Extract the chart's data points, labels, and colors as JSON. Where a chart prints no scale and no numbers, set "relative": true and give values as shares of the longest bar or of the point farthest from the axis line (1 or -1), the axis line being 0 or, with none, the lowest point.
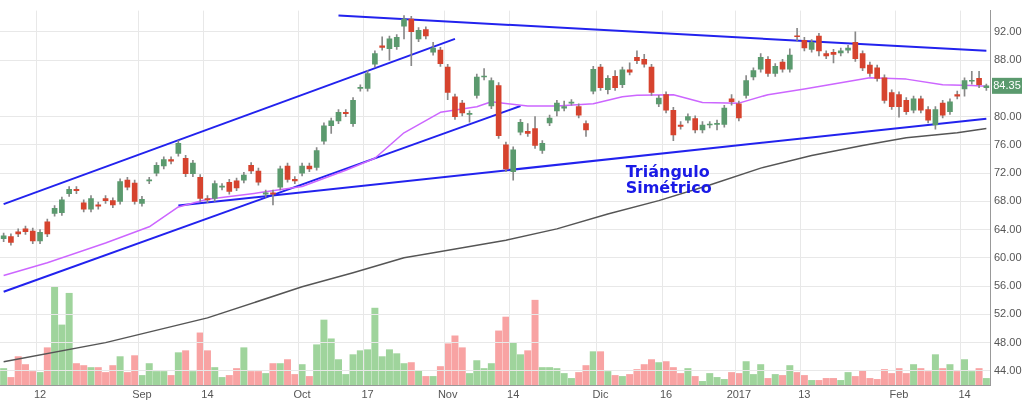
{
  "chart_data": [
    {
      "type": "candlestick",
      "categories": [
        null,
        null,
        null,
        null,
        null,
        "12",
        null,
        null,
        null,
        null,
        null,
        null,
        null,
        null,
        null,
        null,
        null,
        null,
        null,
        "Sep",
        null,
        null,
        null,
        null,
        null,
        null,
        null,
        null,
        "14",
        null,
        null,
        null,
        null,
        null,
        null,
        null,
        null,
        null,
        null,
        null,
        null,
        "Oct",
        null,
        null,
        null,
        null,
        null,
        null,
        null,
        null,
        "17",
        null,
        null,
        null,
        null,
        null,
        null,
        null,
        null,
        null,
        null,
        "Nov",
        null,
        null,
        null,
        null,
        null,
        null,
        null,
        null,
        "14",
        null,
        null,
        null,
        null,
        null,
        null,
        null,
        null,
        null,
        null,
        null,
        "Dic",
        null,
        null,
        null,
        null,
        null,
        null,
        null,
        null,
        "16",
        null,
        null,
        null,
        null,
        null,
        null,
        null,
        null,
        null,
        "2017",
        null,
        null,
        null,
        null,
        null,
        null,
        null,
        null,
        "13",
        null,
        null,
        null,
        null,
        null,
        null,
        null,
        null,
        null,
        null,
        null,
        null,
        "Feb",
        null,
        null,
        null,
        null,
        null,
        null,
        null,
        null,
        "14",
        null,
        null,
        null
      ],
      "ohlc": [
        [
          62.7,
          63.5,
          62.3,
          63.1
        ],
        [
          63.0,
          63.4,
          61.8,
          62.2
        ],
        [
          63.7,
          64.1,
          63.0,
          63.4
        ],
        [
          64.1,
          64.5,
          63.3,
          63.7
        ],
        [
          63.8,
          64.2,
          62.0,
          62.4
        ],
        [
          62.4,
          64.0,
          62.0,
          63.6
        ],
        [
          65.1,
          65.5,
          63.0,
          63.4
        ],
        [
          66.3,
          67.4,
          65.9,
          67.0
        ],
        [
          66.4,
          68.6,
          66.0,
          68.2
        ],
        [
          69.1,
          70.1,
          68.7,
          69.7
        ],
        [
          69.7,
          70.1,
          69.1,
          69.5
        ],
        [
          67.8,
          68.2,
          66.5,
          66.9
        ],
        [
          66.9,
          68.8,
          66.5,
          68.4
        ],
        [
          67.5,
          67.9,
          66.9,
          67.3
        ],
        [
          68.4,
          68.8,
          67.7,
          68.1
        ],
        [
          68.1,
          68.5,
          67.1,
          67.5
        ],
        [
          68.0,
          71.2,
          67.6,
          70.8
        ],
        [
          71.0,
          71.4,
          69.6,
          70.0
        ],
        [
          70.6,
          71.0,
          67.6,
          68.0
        ],
        [
          67.7,
          68.7,
          67.3,
          68.3
        ],
        [
          70.9,
          71.4,
          70.5,
          71.0
        ],
        [
          72.0,
          73.5,
          71.6,
          73.1
        ],
        [
          73.0,
          74.3,
          72.6,
          73.9
        ],
        [
          73.9,
          74.3,
          73.3,
          73.7
        ],
        [
          74.8,
          76.6,
          74.4,
          76.2
        ],
        [
          74.1,
          74.5,
          71.5,
          71.9
        ],
        [
          71.9,
          73.8,
          71.5,
          73.4
        ],
        [
          71.4,
          71.8,
          68.0,
          68.4
        ],
        [
          68.4,
          68.8,
          67.8,
          68.2
        ],
        [
          68.4,
          70.9,
          68.0,
          70.5
        ],
        [
          70.0,
          70.5,
          69.6,
          70.1
        ],
        [
          70.7,
          71.1,
          69.0,
          69.4
        ],
        [
          70.9,
          71.3,
          69.5,
          69.9
        ],
        [
          71.0,
          72.1,
          70.6,
          71.7
        ],
        [
          73.1,
          73.5,
          71.9,
          72.3
        ],
        [
          72.3,
          72.7,
          70.3,
          70.7
        ],
        [
          69.0,
          69.6,
          68.6,
          69.2
        ],
        [
          69.2,
          69.6,
          67.5,
          69.0
        ],
        [
          70.0,
          73.0,
          69.6,
          72.6
        ],
        [
          73.0,
          73.4,
          70.7,
          71.1
        ],
        [
          71.1,
          71.5,
          70.5,
          70.9
        ],
        [
          72.0,
          73.4,
          71.6,
          73.0
        ],
        [
          73.0,
          73.4,
          72.2,
          72.6
        ],
        [
          72.8,
          75.6,
          72.4,
          75.2
        ],
        [
          76.5,
          79.1,
          76.1,
          78.7
        ],
        [
          78.7,
          79.8,
          77.6,
          79.4
        ],
        [
          79.4,
          81.0,
          79.0,
          80.6
        ],
        [
          80.6,
          81.0,
          80.0,
          80.4
        ],
        [
          79.0,
          82.7,
          78.6,
          82.3
        ],
        [
          84.0,
          84.5,
          83.6,
          84.1
        ],
        [
          84.0,
          86.5,
          83.6,
          86.1
        ],
        [
          87.4,
          89.3,
          87.0,
          88.9
        ],
        [
          90.0,
          91.3,
          89.4,
          89.8
        ],
        [
          89.6,
          91.4,
          88.0,
          91.0
        ],
        [
          89.9,
          91.6,
          89.5,
          91.2
        ],
        [
          92.8,
          94.3,
          91.0,
          93.8
        ],
        [
          93.8,
          94.2,
          87.2,
          92.0
        ],
        [
          91.0,
          92.6,
          90.6,
          92.2
        ],
        [
          92.3,
          92.7,
          91.0,
          91.4
        ],
        [
          89.1,
          90.5,
          88.7,
          89.7
        ],
        [
          89.4,
          89.8,
          87.1,
          87.5
        ],
        [
          87.0,
          87.4,
          82.4,
          83.4
        ],
        [
          82.8,
          83.2,
          79.6,
          80.0
        ],
        [
          81.9,
          82.3,
          80.1,
          80.5
        ],
        [
          80.3,
          80.8,
          79.2,
          80.4
        ],
        [
          83.0,
          86.0,
          82.6,
          85.6
        ],
        [
          85.6,
          86.8,
          85.2,
          85.7
        ],
        [
          81.5,
          85.5,
          81.1,
          85.1
        ],
        [
          84.4,
          84.8,
          76.9,
          77.3
        ],
        [
          76.0,
          76.4,
          72.2,
          72.6
        ],
        [
          72.2,
          75.7,
          71.0,
          75.3
        ],
        [
          77.8,
          79.6,
          77.4,
          79.2
        ],
        [
          77.9,
          79.0,
          77.2,
          77.6
        ],
        [
          78.3,
          80.0,
          75.5,
          75.9
        ],
        [
          75.2,
          76.6,
          74.8,
          76.2
        ],
        [
          79.1,
          80.2,
          78.7,
          79.8
        ],
        [
          80.8,
          82.3,
          80.1,
          81.9
        ],
        [
          81.2,
          82.2,
          80.8,
          81.4
        ],
        [
          81.9,
          82.4,
          81.6,
          82.0
        ],
        [
          81.4,
          81.8,
          79.8,
          80.2
        ],
        [
          79.0,
          79.4,
          77.2,
          78.1
        ],
        [
          83.6,
          87.1,
          83.2,
          86.7
        ],
        [
          87.0,
          87.4,
          83.7,
          84.1
        ],
        [
          83.8,
          85.8,
          83.2,
          85.4
        ],
        [
          85.7,
          86.5,
          83.7,
          84.1
        ],
        [
          84.5,
          87.0,
          84.1,
          86.6
        ],
        [
          86.6,
          87.6,
          85.9,
          86.3
        ],
        [
          88.4,
          89.3,
          87.5,
          87.9
        ],
        [
          88.1,
          88.8,
          87.0,
          87.4
        ],
        [
          87.0,
          87.4,
          83.0,
          83.4
        ],
        [
          81.8,
          83.0,
          81.4,
          82.6
        ],
        [
          83.1,
          83.5,
          80.5,
          80.9
        ],
        [
          80.9,
          81.3,
          76.6,
          77.4
        ],
        [
          78.8,
          79.3,
          78.2,
          78.6
        ],
        [
          79.5,
          80.4,
          79.1,
          80.0
        ],
        [
          79.7,
          80.1,
          77.7,
          78.1
        ],
        [
          78.1,
          79.3,
          77.7,
          78.8
        ],
        [
          78.8,
          79.3,
          78.4,
          78.9
        ],
        [
          78.9,
          79.5,
          78.1,
          79.0
        ],
        [
          78.9,
          81.6,
          78.5,
          81.2
        ],
        [
          82.5,
          83.1,
          81.6,
          82.1
        ],
        [
          81.8,
          82.2,
          79.4,
          79.8
        ],
        [
          83.0,
          85.8,
          82.6,
          85.1
        ],
        [
          85.6,
          86.9,
          85.2,
          86.5
        ],
        [
          86.7,
          88.9,
          86.3,
          88.4
        ],
        [
          88.1,
          88.5,
          85.7,
          86.1
        ],
        [
          86.1,
          87.5,
          85.7,
          87.1
        ],
        [
          87.7,
          88.1,
          86.3,
          86.7
        ],
        [
          86.7,
          89.6,
          86.3,
          88.7
        ],
        [
          91.4,
          92.5,
          90.7,
          91.3
        ],
        [
          90.8,
          91.2,
          89.3,
          89.7
        ],
        [
          89.5,
          90.9,
          89.1,
          90.5
        ],
        [
          91.4,
          91.8,
          88.6,
          89.3
        ],
        [
          88.9,
          89.3,
          88.2,
          88.6
        ],
        [
          89.1,
          89.5,
          87.6,
          88.8
        ],
        [
          89.0,
          89.7,
          88.6,
          89.3
        ],
        [
          89.4,
          90.1,
          89.0,
          89.7
        ],
        [
          90.5,
          92.0,
          87.8,
          88.2
        ],
        [
          88.9,
          89.3,
          86.5,
          86.9
        ],
        [
          87.3,
          87.7,
          85.7,
          86.1
        ],
        [
          86.9,
          87.3,
          85.0,
          85.4
        ],
        [
          85.5,
          85.9,
          81.9,
          82.3
        ],
        [
          83.4,
          83.8,
          81.0,
          81.4
        ],
        [
          83.1,
          83.5,
          79.9,
          81.4
        ],
        [
          82.3,
          82.7,
          80.3,
          80.7
        ],
        [
          80.9,
          82.9,
          80.5,
          82.5
        ],
        [
          82.5,
          82.9,
          80.5,
          80.9
        ],
        [
          81.0,
          81.4,
          79.1,
          79.5
        ],
        [
          78.8,
          81.4,
          78.2,
          81.0
        ],
        [
          81.9,
          82.3,
          79.8,
          80.2
        ],
        [
          80.7,
          82.5,
          80.3,
          82.1
        ],
        [
          83.1,
          83.6,
          82.5,
          82.9
        ],
        [
          83.9,
          85.5,
          82.9,
          85.1
        ],
        [
          85.0,
          86.4,
          84.6,
          85.1
        ],
        [
          85.4,
          86.4,
          84.1,
          84.5
        ],
        [
          84.1,
          84.6,
          83.7,
          84.35
        ]
      ],
      "colors": [
        "#5b9a6e",
        "#d6432e",
        "#d6432e",
        "#d6432e",
        "#d6432e",
        "#5b9a6e",
        "#d6432e",
        "#5b9a6e",
        "#5b9a6e",
        "#5b9a6e",
        "#d6432e",
        "#d6432e",
        "#5b9a6e",
        "#d6432e",
        "#d6432e",
        "#d6432e",
        "#5b9a6e",
        "#d6432e",
        "#d6432e",
        "#5b9a6e",
        "#5b9a6e",
        "#5b9a6e",
        "#5b9a6e",
        "#d6432e",
        "#5b9a6e",
        "#d6432e",
        "#5b9a6e",
        "#d6432e",
        "#d6432e",
        "#5b9a6e",
        "#5b9a6e",
        "#d6432e",
        "#d6432e",
        "#5b9a6e",
        "#d6432e",
        "#d6432e",
        "#5b9a6e",
        "#d6432e",
        "#5b9a6e",
        "#d6432e",
        "#d6432e",
        "#5b9a6e",
        "#d6432e",
        "#5b9a6e",
        "#5b9a6e",
        "#5b9a6e",
        "#5b9a6e",
        "#d6432e",
        "#5b9a6e",
        "#5b9a6e",
        "#5b9a6e",
        "#5b9a6e",
        "#d6432e",
        "#5b9a6e",
        "#5b9a6e",
        "#5b9a6e",
        "#d6432e",
        "#5b9a6e",
        "#d6432e",
        "#5b9a6e",
        "#d6432e",
        "#d6432e",
        "#d6432e",
        "#d6432e",
        "#5b9a6e",
        "#5b9a6e",
        "#5b9a6e",
        "#5b9a6e",
        "#d6432e",
        "#d6432e",
        "#5b9a6e",
        "#5b9a6e",
        "#d6432e",
        "#d6432e",
        "#5b9a6e",
        "#5b9a6e",
        "#5b9a6e",
        "#5b9a6e",
        "#5b9a6e",
        "#d6432e",
        "#d6432e",
        "#5b9a6e",
        "#d6432e",
        "#5b9a6e",
        "#d6432e",
        "#5b9a6e",
        "#d6432e",
        "#d6432e",
        "#d6432e",
        "#d6432e",
        "#5b9a6e",
        "#d6432e",
        "#d6432e",
        "#d6432e",
        "#5b9a6e",
        "#d6432e",
        "#5b9a6e",
        "#5b9a6e",
        "#5b9a6e",
        "#5b9a6e",
        "#d6432e",
        "#d6432e",
        "#5b9a6e",
        "#5b9a6e",
        "#5b9a6e",
        "#d6432e",
        "#5b9a6e",
        "#d6432e",
        "#5b9a6e",
        "#d6432e",
        "#d6432e",
        "#5b9a6e",
        "#d6432e",
        "#d6432e",
        "#d6432e",
        "#5b9a6e",
        "#5b9a6e",
        "#d6432e",
        "#d6432e",
        "#d6432e",
        "#d6432e",
        "#d6432e",
        "#d6432e",
        "#d6432e",
        "#d6432e",
        "#5b9a6e",
        "#d6432e",
        "#d6432e",
        "#5b9a6e",
        "#d6432e",
        "#5b9a6e",
        "#d6432e",
        "#5b9a6e",
        "#5b9a6e",
        "#d6432e",
        "#5b9a6e"
      ],
      "series": [
        {
          "type": "line",
          "color": "#cc66ff",
          "values": [
            57.5,
            null,
            null,
            null,
            null,
            null,
            59.3,
            null,
            null,
            null,
            null,
            null,
            null,
            null,
            62.1,
            null,
            null,
            null,
            null,
            null,
            64.4,
            null,
            null,
            null,
            67.2,
            null,
            null,
            null,
            68.3,
            null,
            null,
            null,
            null,
            null,
            null,
            69.2,
            null,
            null,
            null,
            null,
            null,
            70.1,
            null,
            null,
            null,
            null,
            null,
            72.4,
            null,
            null,
            null,
            74.1,
            null,
            null,
            null,
            77.7,
            null,
            null,
            null,
            null,
            80.6,
            null,
            null,
            null,
            null,
            81.4,
            null,
            82.1,
            null,
            null,
            null,
            null,
            81.5,
            null,
            null,
            null,
            81.5,
            null,
            null,
            null,
            null,
            81.8,
            null,
            null,
            null,
            82.8,
            null,
            83.0,
            null,
            null,
            null,
            null,
            83.1,
            null,
            null,
            null,
            82.0,
            null,
            null,
            null,
            null,
            81.9,
            null,
            null,
            null,
            83.1,
            null,
            null,
            null,
            null,
            83.9,
            null,
            null,
            null,
            null,
            84.8,
            null,
            null,
            null,
            85.5,
            null,
            null,
            null,
            null,
            85.3,
            null,
            null,
            null,
            null,
            84.5,
            null,
            null,
            null,
            84.4,
            null,
            84.3
          ]
        },
        {
          "type": "line",
          "color": "#555555",
          "values": [
            45.3,
            null,
            null,
            null,
            null,
            null,
            null,
            null,
            null,
            null,
            null,
            null,
            null,
            null,
            48.0,
            null,
            null,
            null,
            null,
            null,
            null,
            null,
            null,
            null,
            null,
            null,
            null,
            null,
            51.5,
            null,
            null,
            null,
            null,
            null,
            null,
            null,
            null,
            null,
            null,
            null,
            null,
            55.9,
            null,
            null,
            null,
            null,
            null,
            null,
            57.9,
            null,
            null,
            null,
            null,
            null,
            null,
            60.0,
            null,
            null,
            null,
            null,
            null,
            null,
            null,
            null,
            null,
            null,
            null,
            null,
            null,
            62.5,
            null,
            null,
            null,
            null,
            null,
            null,
            64.1,
            null,
            null,
            null,
            null,
            null,
            null,
            66.2,
            null,
            null,
            null,
            null,
            null,
            null,
            68.1,
            null,
            null,
            null,
            null,
            null,
            null,
            70.3,
            null,
            null,
            null,
            null,
            null,
            null,
            72.7,
            null,
            null,
            null,
            null,
            null,
            null,
            74.5,
            null,
            null,
            null,
            null,
            null,
            null,
            75.9,
            null,
            null,
            null,
            null,
            null,
            77.0,
            null,
            null,
            null,
            null,
            null,
            null,
            77.7,
            null,
            null,
            null,
            78.3
          ]
        },
        {
          "type": "line",
          "color": "#2222ee",
          "values": [
            67.6,
            null,
            null,
            null,
            null,
            null,
            null,
            null,
            null,
            null,
            null,
            null,
            null,
            null,
            null,
            null,
            null,
            null,
            null,
            null,
            null,
            null,
            null,
            null,
            null,
            null,
            null,
            null,
            null,
            null,
            null,
            null,
            null,
            null,
            null,
            null,
            null,
            null,
            null,
            null,
            null,
            null,
            null,
            null,
            null,
            null,
            null,
            null,
            null,
            null,
            null,
            null,
            null,
            null,
            null,
            null,
            null,
            null,
            null,
            null,
            null,
            null,
            91.0,
            null,
            null,
            null,
            null,
            null,
            null,
            null,
            null,
            null,
            null,
            null,
            null,
            null,
            null,
            null,
            null,
            null,
            null,
            null,
            null,
            null,
            null,
            null,
            null,
            null,
            null,
            null,
            null,
            null,
            null,
            null,
            null,
            null,
            null,
            null,
            null,
            null,
            null,
            null,
            null,
            null,
            null,
            null,
            null,
            null,
            null,
            null,
            null,
            null,
            null,
            null,
            null,
            null,
            null,
            null,
            null,
            null,
            null,
            null,
            null,
            null,
            null,
            null,
            null,
            null,
            null,
            null,
            null,
            null,
            null,
            null,
            null,
            null
          ]
        },
        {
          "type": "line",
          "color": "#2222ee",
          "values": [
            55.2,
            null,
            null,
            null,
            null,
            null,
            null,
            null,
            null,
            null,
            null,
            null,
            null,
            null,
            null,
            null,
            null,
            null,
            null,
            null,
            null,
            null,
            null,
            null,
            null,
            null,
            null,
            null,
            null,
            null,
            null,
            null,
            null,
            null,
            null,
            null,
            null,
            null,
            null,
            null,
            null,
            null,
            null,
            null,
            null,
            null,
            null,
            null,
            null,
            null,
            null,
            null,
            null,
            null,
            null,
            null,
            null,
            null,
            null,
            null,
            null,
            null,
            null,
            null,
            null,
            null,
            null,
            null,
            null,
            null,
            null,
            81.5,
            null,
            null,
            null,
            null,
            null,
            null,
            null,
            null,
            null,
            null,
            null,
            null,
            null,
            null,
            null,
            null,
            null,
            null,
            null,
            null,
            null,
            null,
            null,
            null,
            null,
            null,
            null,
            null,
            null,
            null,
            null,
            null,
            null,
            null,
            null,
            null,
            null,
            null,
            null,
            null,
            null,
            null,
            null,
            null,
            null,
            null,
            null,
            null,
            null,
            null,
            null,
            null,
            null,
            null,
            null,
            null,
            null,
            null,
            null,
            null,
            null,
            null,
            null,
            null
          ]
        },
        {
          "type": "line",
          "color": "#2222ee",
          "values": [
            null,
            null,
            null,
            null,
            null,
            null,
            null,
            null,
            null,
            null,
            null,
            null,
            null,
            null,
            null,
            null,
            null,
            null,
            null,
            null,
            null,
            null,
            null,
            null,
            67.4,
            null,
            null,
            null,
            null,
            null,
            null,
            null,
            null,
            null,
            null,
            null,
            null,
            null,
            null,
            null,
            null,
            null,
            null,
            null,
            null,
            null,
            null,
            null,
            null,
            null,
            null,
            null,
            null,
            null,
            null,
            null,
            null,
            null,
            null,
            null,
            null,
            null,
            null,
            null,
            null,
            null,
            null,
            null,
            null,
            null,
            null,
            null,
            null,
            null,
            null,
            null,
            null,
            null,
            null,
            null,
            null,
            null,
            null,
            null,
            null,
            null,
            null,
            null,
            null,
            null,
            null,
            null,
            null,
            null,
            null,
            null,
            null,
            null,
            null,
            null,
            null,
            null,
            null,
            null,
            null,
            null,
            null,
            null,
            null,
            null,
            null,
            null,
            null,
            null,
            null,
            null,
            null,
            null,
            null,
            null,
            null,
            null,
            null,
            null,
            null,
            null,
            null,
            null,
            null,
            null,
            null,
            null,
            null,
            null,
            null,
            79.7
          ]
        },
        {
          "type": "line",
          "color": "#2222ee",
          "values": [
            null,
            null,
            null,
            null,
            null,
            null,
            null,
            null,
            null,
            null,
            null,
            null,
            null,
            null,
            null,
            null,
            null,
            null,
            null,
            null,
            null,
            null,
            null,
            null,
            null,
            null,
            null,
            null,
            null,
            null,
            null,
            null,
            null,
            null,
            null,
            null,
            null,
            null,
            null,
            null,
            null,
            null,
            null,
            null,
            null,
            null,
            94.3,
            null,
            null,
            null,
            null,
            null,
            null,
            null,
            null,
            null,
            null,
            null,
            null,
            null,
            null,
            null,
            null,
            null,
            null,
            null,
            null,
            null,
            null,
            null,
            null,
            null,
            null,
            null,
            null,
            null,
            null,
            null,
            null,
            null,
            null,
            null,
            null,
            null,
            null,
            null,
            null,
            null,
            null,
            null,
            null,
            null,
            null,
            null,
            null,
            null,
            null,
            null,
            null,
            null,
            null,
            null,
            null,
            null,
            null,
            null,
            null,
            null,
            null,
            null,
            null,
            null,
            null,
            null,
            null,
            null,
            null,
            null,
            null,
            null,
            null,
            null,
            null,
            null,
            null,
            null,
            null,
            null,
            null,
            null,
            null,
            null,
            null,
            null,
            null,
            89.3
          ]
        }
      ],
      "ylim": [
        42,
        95
      ],
      "yticks": [
        {
          "value": 44,
          "label": "44.00"
        },
        {
          "value": 48,
          "label": "48.00"
        },
        {
          "value": 52,
          "label": "52.00"
        },
        {
          "value": 56,
          "label": "56.00"
        },
        {
          "value": 60,
          "label": "60.00"
        },
        {
          "value": 64,
          "label": "64.00"
        },
        {
          "value": 68,
          "label": "68.00"
        },
        {
          "value": 72,
          "label": "72.00"
        },
        {
          "value": 76,
          "label": "76.00"
        },
        {
          "value": 80,
          "label": "80.00"
        },
        {
          "value": 88,
          "label": "88.00"
        },
        {
          "value": 92,
          "label": "92.00"
        }
      ],
      "grid": true,
      "annotations": [
        "Triángulo Simétrico",
        {
          "text": "84.35",
          "y": 84.35
        }
      ]
    },
    {
      "type": "bar",
      "relative": true,
      "tick_labels": false,
      "categories": [
        null,
        null,
        null,
        null,
        null,
        null,
        null,
        null,
        null,
        null,
        null,
        null,
        null,
        null,
        null,
        null,
        null,
        null,
        null,
        null,
        null,
        null,
        null,
        null,
        null,
        null,
        null,
        null,
        null,
        null,
        null,
        null,
        null,
        null,
        null,
        null,
        null,
        null,
        null,
        null,
        null,
        null,
        null,
        null,
        null,
        null,
        null,
        null,
        null,
        null,
        null,
        null,
        null,
        null,
        null,
        null,
        null,
        null,
        null,
        null,
        null,
        null,
        null,
        null,
        null,
        null,
        null,
        null,
        null,
        null,
        null,
        null,
        null,
        null,
        null,
        null,
        null,
        null,
        null,
        null,
        null,
        null,
        null,
        null,
        null,
        null,
        null,
        null,
        null,
        null,
        null,
        null,
        null,
        null,
        null,
        null,
        null,
        null,
        null,
        null,
        null,
        null,
        null,
        null,
        null,
        null,
        null,
        null,
        null,
        null,
        null,
        null,
        null,
        null,
        null,
        null,
        null,
        null,
        null,
        null,
        null,
        null,
        null,
        null,
        null,
        null,
        null,
        null,
        null,
        null,
        null,
        null,
        null,
        null,
        null,
        null
      ],
      "values": [
        0.17,
        0.08,
        0.29,
        0.21,
        0.14,
        0.13,
        0.38,
        1,
        0.61,
        0.93,
        0.22,
        0.2,
        0.18,
        0.18,
        0.13,
        0.2,
        0.29,
        0.13,
        0.3,
        0.1,
        0.22,
        0.14,
        0.14,
        0.1,
        0.33,
        0.35,
        0.14,
        0.53,
        0.35,
        0.18,
        0.08,
        0.1,
        0.17,
        0.38,
        0.14,
        0.14,
        0.12,
        0.22,
        0.22,
        0.26,
        0.11,
        0.21,
        0.09,
        0.41,
        0.66,
        0.47,
        0.26,
        0.11,
        0.31,
        0.35,
        0.36,
        0.78,
        0.29,
        0.36,
        0.32,
        0.22,
        0.23,
        0.15,
        0.09,
        0.09,
        0.19,
        0.42,
        0.5,
        0.38,
        0.12,
        0.25,
        0.17,
        0.22,
        0.55,
        0.69,
        0.43,
        0.31,
        0.35,
        0.86,
        0.18,
        0.18,
        0.17,
        0.12,
        0.07,
        0.13,
        0.2,
        0.34,
        0.34,
        0.14,
        0.1,
        0.09,
        0.11,
        0.16,
        0.21,
        0.26,
        0.23,
        0.24,
        0.18,
        0.12,
        0.17,
        0.09,
        0.04,
        0.12,
        0.08,
        0.06,
        0.13,
        0.12,
        0.24,
        0.11,
        0.21,
        0.07,
        0.11,
        0.1,
        0.2,
        0.13,
        0.1,
        0.05,
        0.05,
        0.07,
        0.07,
        0.05,
        0.13,
        0.09,
        0.15,
        0.07,
        0.06,
        0.16,
        0.12,
        0.17,
        0.12,
        0.21,
        0.17,
        0.14,
        0.31,
        0.17,
        0.21,
        0.14,
        0.26,
        0.14,
        0.17,
        0.07
      ],
      "colors": [
        "#9fd49c",
        "#f8a3a3",
        "#f8a3a3",
        "#f8a3a3",
        "#f8a3a3",
        "#9fd49c",
        "#f8a3a3",
        "#9fd49c",
        "#9fd49c",
        "#9fd49c",
        "#f8a3a3",
        "#f8a3a3",
        "#9fd49c",
        "#f8a3a3",
        "#f8a3a3",
        "#f8a3a3",
        "#9fd49c",
        "#f8a3a3",
        "#f8a3a3",
        "#9fd49c",
        "#9fd49c",
        "#9fd49c",
        "#9fd49c",
        "#f8a3a3",
        "#9fd49c",
        "#f8a3a3",
        "#9fd49c",
        "#f8a3a3",
        "#f8a3a3",
        "#9fd49c",
        "#9fd49c",
        "#f8a3a3",
        "#f8a3a3",
        "#9fd49c",
        "#f8a3a3",
        "#f8a3a3",
        "#9fd49c",
        "#f8a3a3",
        "#9fd49c",
        "#f8a3a3",
        "#f8a3a3",
        "#9fd49c",
        "#f8a3a3",
        "#9fd49c",
        "#9fd49c",
        "#9fd49c",
        "#9fd49c",
        "#9fd49c",
        "#9fd49c",
        "#9fd49c",
        "#9fd49c",
        "#9fd49c",
        "#9fd49c",
        "#9fd49c",
        "#9fd49c",
        "#9fd49c",
        "#f8a3a3",
        "#9fd49c",
        "#f8a3a3",
        "#9fd49c",
        "#f8a3a3",
        "#f8a3a3",
        "#f8a3a3",
        "#f8a3a3",
        "#9fd49c",
        "#9fd49c",
        "#9fd49c",
        "#9fd49c",
        "#f8a3a3",
        "#f8a3a3",
        "#9fd49c",
        "#9fd49c",
        "#f8a3a3",
        "#f8a3a3",
        "#9fd49c",
        "#9fd49c",
        "#9fd49c",
        "#9fd49c",
        "#9fd49c",
        "#f8a3a3",
        "#f8a3a3",
        "#9fd49c",
        "#f8a3a3",
        "#9fd49c",
        "#f8a3a3",
        "#9fd49c",
        "#f8a3a3",
        "#f8a3a3",
        "#f8a3a3",
        "#f8a3a3",
        "#9fd49c",
        "#f8a3a3",
        "#f8a3a3",
        "#f8a3a3",
        "#9fd49c",
        "#f8a3a3",
        "#9fd49c",
        "#9fd49c",
        "#9fd49c",
        "#9fd49c",
        "#f8a3a3",
        "#f8a3a3",
        "#9fd49c",
        "#9fd49c",
        "#9fd49c",
        "#f8a3a3",
        "#9fd49c",
        "#f8a3a3",
        "#9fd49c",
        "#f8a3a3",
        "#f8a3a3",
        "#9fd49c",
        "#f8a3a3",
        "#f8a3a3",
        "#f8a3a3",
        "#9fd49c",
        "#9fd49c",
        "#f8a3a3",
        "#f8a3a3",
        "#f8a3a3",
        "#f8a3a3",
        "#f8a3a3",
        "#f8a3a3",
        "#f8a3a3",
        "#f8a3a3",
        "#9fd49c",
        "#f8a3a3",
        "#f8a3a3",
        "#9fd49c",
        "#f8a3a3",
        "#9fd49c",
        "#f8a3a3",
        "#9fd49c",
        "#9fd49c",
        "#f8a3a3",
        "#9fd49c"
      ]
    }
  ]
}
